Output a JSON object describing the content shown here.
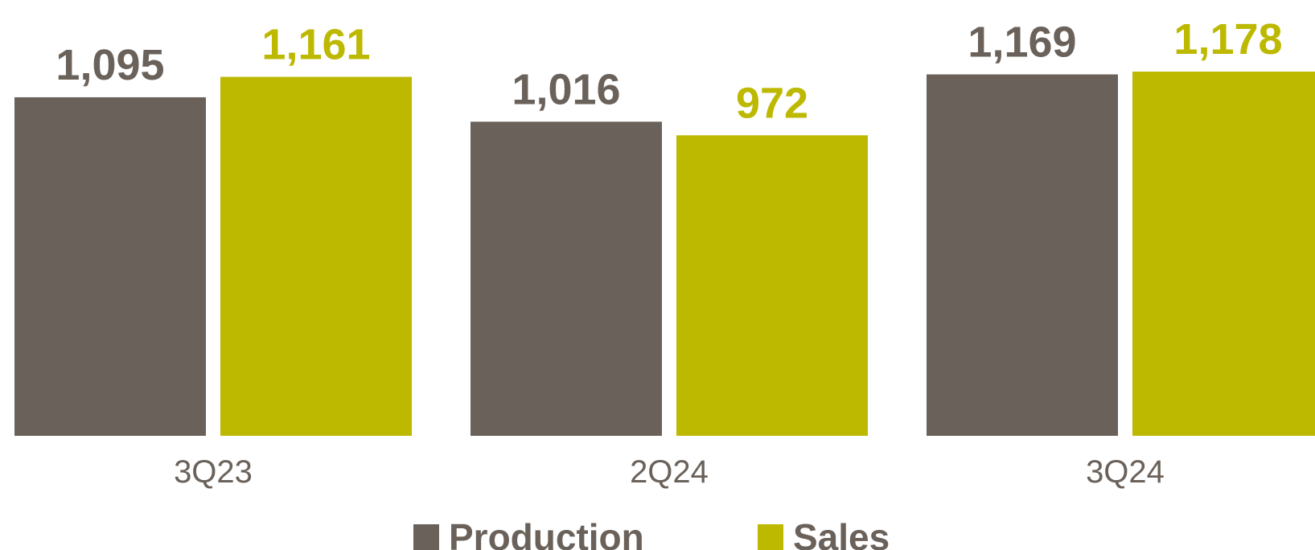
{
  "chart_data": {
    "type": "bar",
    "categories": [
      "3Q23",
      "2Q24",
      "3Q24"
    ],
    "series": [
      {
        "name": "Production",
        "values": [
          1095,
          1016,
          1169
        ],
        "labels": [
          "1,095",
          "1,016",
          "1,169"
        ],
        "color": "#6a625a"
      },
      {
        "name": "Sales",
        "values": [
          1161,
          972,
          1178
        ],
        "labels": [
          "1,161",
          "972",
          "1,178"
        ],
        "color": "#bdb800"
      }
    ],
    "title": "",
    "xlabel": "",
    "ylabel": "",
    "ylim": [
      0,
      1200
    ],
    "grid": false,
    "legend_position": "bottom"
  }
}
